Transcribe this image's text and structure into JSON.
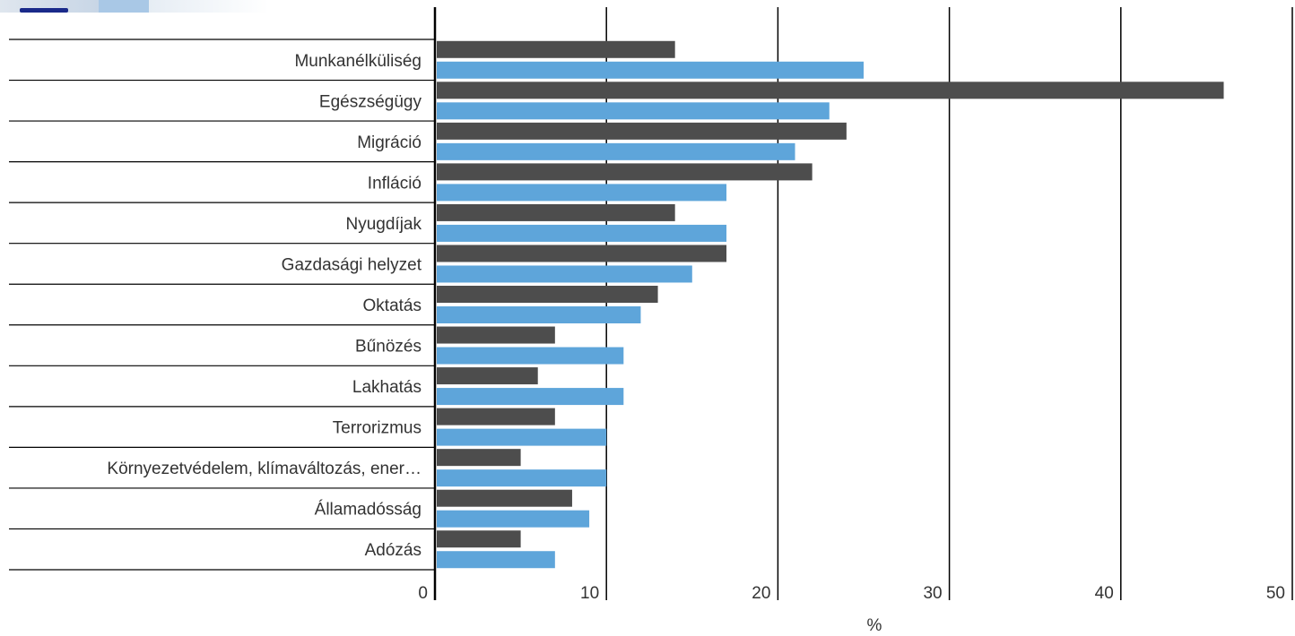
{
  "chart_data": {
    "type": "bar",
    "orientation": "horizontal",
    "categories": [
      "Munkanélküliség",
      "Egészségügy",
      "Migráció",
      "Infláció",
      "Nyugdíjak",
      "Gazdasági helyzet",
      "Oktatás",
      "Bűnözés",
      "Lakhatás",
      "Terrorizmus",
      "Környezetvédelem, klímaváltozás, ener…",
      "Államadósság",
      "Adózás"
    ],
    "series": [
      {
        "values": [
          14,
          46,
          24,
          22,
          14,
          17,
          13,
          7,
          6,
          7,
          5,
          8,
          5
        ],
        "color": "#4d4d4d"
      },
      {
        "values": [
          25,
          23,
          21,
          17,
          17,
          15,
          12,
          11,
          11,
          10,
          10,
          9,
          7
        ],
        "color": "#5ea5da"
      }
    ],
    "title": "",
    "xlabel": "%",
    "ylabel": "",
    "xlim": [
      0,
      50
    ],
    "xticks": [
      "0",
      "10",
      "20",
      "30",
      "40",
      "50"
    ],
    "grid": "vertical",
    "legend": "none"
  }
}
